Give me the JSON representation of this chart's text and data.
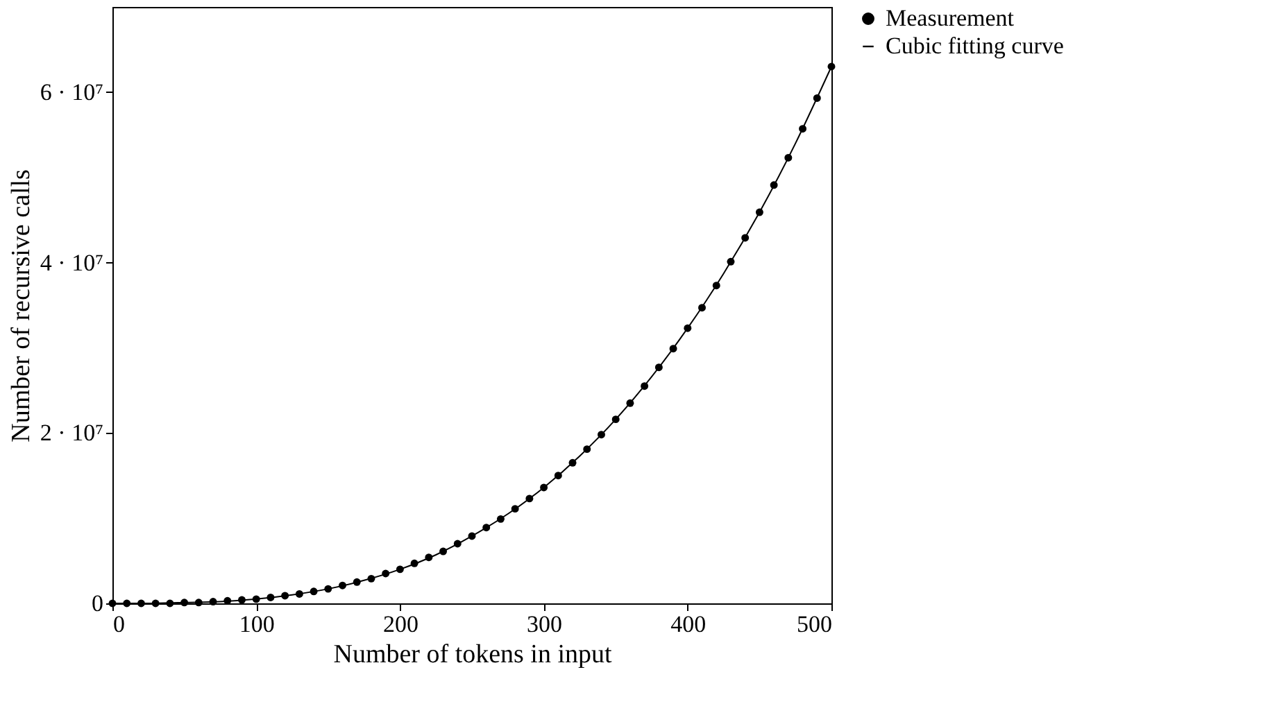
{
  "chart_data": {
    "type": "scatter",
    "xlabel": "Number of tokens in input",
    "ylabel": "Number of recursive calls",
    "xlim": [
      0,
      500
    ],
    "xticks": [
      0,
      100,
      200,
      300,
      400,
      500
    ],
    "ylim": [
      0,
      70000000
    ],
    "yticks": [
      {
        "value": 0,
        "label": "0"
      },
      {
        "value": 20000000,
        "label": "2 · 10⁷"
      },
      {
        "value": 40000000,
        "label": "4 · 10⁷"
      },
      {
        "value": 60000000,
        "label": "6 · 10⁷"
      }
    ],
    "grid": false,
    "legend": "top right",
    "series": [
      {
        "name": "Measurement",
        "marker": "circle",
        "color": "#000000",
        "x": [
          0,
          10,
          20,
          30,
          40,
          50,
          60,
          70,
          80,
          90,
          100,
          110,
          120,
          130,
          140,
          150,
          160,
          170,
          180,
          190,
          200,
          210,
          220,
          230,
          240,
          250,
          260,
          270,
          280,
          290,
          300,
          310,
          320,
          330,
          340,
          350,
          360,
          370,
          380,
          390,
          400,
          410,
          420,
          430,
          440,
          450,
          460,
          470,
          480,
          490,
          500
        ],
        "values": [
          0,
          0,
          0,
          0,
          0,
          100000,
          100000,
          200000,
          300000,
          400000,
          500000,
          700000,
          900000,
          1100000,
          1400000,
          1700000,
          2100000,
          2500000,
          2900000,
          3500000,
          4000000,
          4700000,
          5400000,
          6100000,
          7000000,
          7900000,
          8900000,
          9900000,
          11100000,
          12300000,
          13600000,
          15000000,
          16500000,
          18100000,
          19800000,
          21600000,
          23500000,
          25500000,
          27700000,
          29900000,
          32300000,
          34700000,
          37300000,
          40100000,
          42900000,
          45900000,
          49100000,
          52300000,
          55700000,
          59300000,
          63000000
        ]
      },
      {
        "name": "Cubic fitting curve",
        "type": "line",
        "marker": "none",
        "line_style": "solid",
        "color": "#000000",
        "x": [
          0,
          25,
          50,
          75,
          100,
          125,
          150,
          175,
          200,
          225,
          250,
          275,
          300,
          325,
          350,
          375,
          400,
          425,
          450,
          475,
          500
        ],
        "values": [
          0,
          0,
          100000,
          200000,
          500000,
          1000000,
          1700000,
          2700000,
          4000000,
          5700000,
          7900000,
          10500000,
          13600000,
          17300000,
          21600000,
          26600000,
          32300000,
          38700000,
          45900000,
          54000000,
          63000000
        ]
      }
    ]
  }
}
